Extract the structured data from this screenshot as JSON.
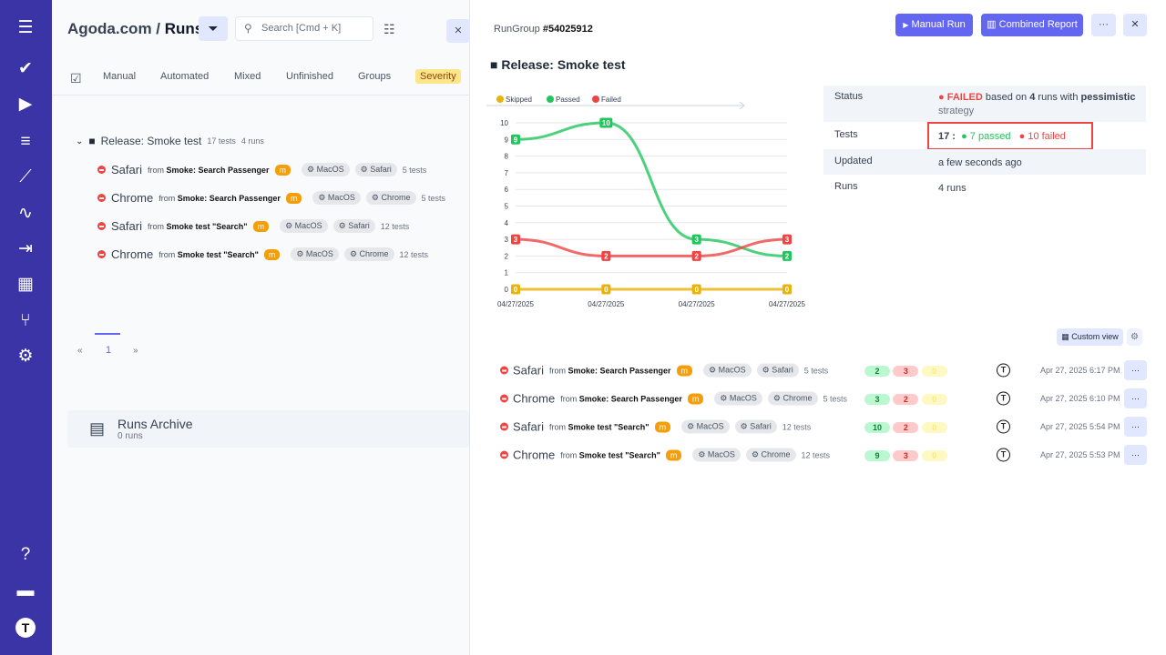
{
  "sidebar": {
    "items": [
      "menu-icon",
      "check-icon",
      "play-icon",
      "list-check-icon",
      "steps-icon",
      "pulse-icon",
      "import-icon",
      "report-icon",
      "branch-icon",
      "gear-icon",
      "help-icon",
      "folder-icon",
      "user-avatar-icon"
    ]
  },
  "left": {
    "breadcrumb_project": "Agoda.com",
    "breadcrumb_sep": "/",
    "breadcrumb_page": "Runs",
    "search_placeholder": "Search [Cmd + K]",
    "tabs": [
      "Manual",
      "Automated",
      "Mixed",
      "Unfinished",
      "Groups",
      "Severity"
    ],
    "group": {
      "name": "Release: Smoke test",
      "tests": "17 tests",
      "runs": "4 runs"
    },
    "runs": [
      {
        "name": "Safari",
        "from": "from",
        "source": "Smoke: Search Passenger",
        "badge": "m",
        "os": "MacOS",
        "browser": "Safari",
        "tests": "5 tests"
      },
      {
        "name": "Chrome",
        "from": "from",
        "source": "Smoke: Search Passenger",
        "badge": "m",
        "os": "MacOS",
        "browser": "Chrome",
        "tests": "5 tests"
      },
      {
        "name": "Safari",
        "from": "from",
        "source": "Smoke test \"Search\"",
        "badge": "m",
        "os": "MacOS",
        "browser": "Safari",
        "tests": "12 tests"
      },
      {
        "name": "Chrome",
        "from": "from",
        "source": "Smoke test \"Search\"",
        "badge": "m",
        "os": "MacOS",
        "browser": "Chrome",
        "tests": "12 tests"
      }
    ],
    "pagination": {
      "prev": "«",
      "page": "1",
      "next": "»"
    },
    "archive": {
      "title": "Runs Archive",
      "count": "0 runs"
    }
  },
  "right": {
    "rungroup_label": "RunGroup",
    "rungroup_id": "#54025912",
    "manual_run": "Manual Run",
    "combined_report": "Combined Report",
    "more": "···",
    "close": "✕",
    "title": "Release: Smoke test",
    "info": {
      "status_label": "Status",
      "status_value": "FAILED",
      "status_text1": "based on",
      "status_runs": "4",
      "status_text2": "runs with",
      "status_strategy": "pessimistic",
      "status_text3": "strategy",
      "tests_label": "Tests",
      "tests_total": "17 :",
      "tests_passed": "7 passed",
      "tests_failed": "10 failed",
      "updated_label": "Updated",
      "updated_value": "a few seconds ago",
      "runs_label": "Runs",
      "runs_value": "4 runs"
    },
    "custom_view": "Custom view",
    "runs": [
      {
        "name": "Safari",
        "from": "from",
        "source": "Smoke: Search Passenger",
        "badge": "m",
        "os": "MacOS",
        "browser": "Safari",
        "tests": "5 tests",
        "passed": "2",
        "failed": "3",
        "skipped": "0",
        "date": "Apr 27, 2025 6:17 PM"
      },
      {
        "name": "Chrome",
        "from": "from",
        "source": "Smoke: Search Passenger",
        "badge": "m",
        "os": "MacOS",
        "browser": "Chrome",
        "tests": "5 tests",
        "passed": "3",
        "failed": "2",
        "skipped": "0",
        "date": "Apr 27, 2025 6:10 PM"
      },
      {
        "name": "Safari",
        "from": "from",
        "source": "Smoke test \"Search\"",
        "badge": "m",
        "os": "MacOS",
        "browser": "Safari",
        "tests": "12 tests",
        "passed": "10",
        "failed": "2",
        "skipped": "0",
        "date": "Apr 27, 2025 5:54 PM"
      },
      {
        "name": "Chrome",
        "from": "from",
        "source": "Smoke test \"Search\"",
        "badge": "m",
        "os": "MacOS",
        "browser": "Chrome",
        "tests": "12 tests",
        "passed": "9",
        "failed": "3",
        "skipped": "0",
        "date": "Apr 27, 2025 5:53 PM"
      }
    ]
  },
  "chart_data": {
    "type": "line",
    "categories": [
      "04/27/2025",
      "04/27/2025",
      "04/27/2025",
      "04/27/2025"
    ],
    "ylim": [
      0,
      10
    ],
    "yticks": [
      "0",
      "1",
      "2",
      "3",
      "4",
      "5",
      "6",
      "7",
      "8",
      "9",
      "10"
    ],
    "grid": true,
    "legend": "top-left",
    "series": [
      {
        "name": "Skipped",
        "color": "#eab308",
        "values": [
          0,
          0,
          0,
          0
        ]
      },
      {
        "name": "Passed",
        "color": "#22c55e",
        "values": [
          9,
          10,
          3,
          2
        ]
      },
      {
        "name": "Failed",
        "color": "#ef4444",
        "values": [
          3,
          2,
          2,
          3
        ]
      }
    ]
  },
  "colors": {
    "sidebar": "#3b34a6",
    "accent": "#6366f1",
    "failed": "#ef4444",
    "passed": "#22c55e"
  }
}
